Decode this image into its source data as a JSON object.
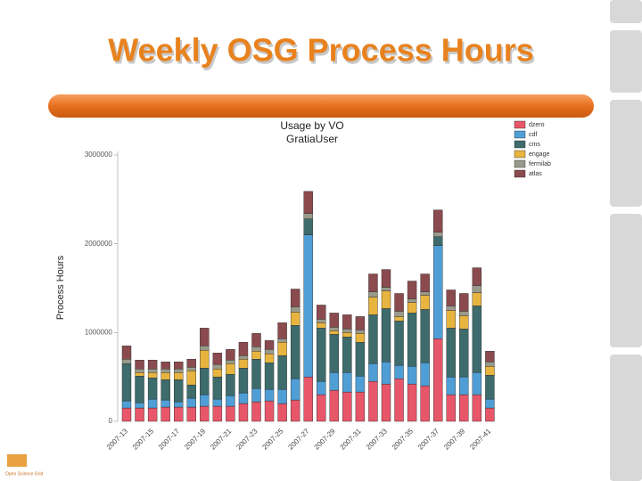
{
  "slide_title": "Weekly OSG Process Hours",
  "logo_text": "Open Science Grid",
  "chart_data": {
    "type": "stacked-bar",
    "title": "Usage by VO",
    "subtitle": "GratiaUser",
    "y_label": "Process Hours",
    "ylim": [
      0,
      3000000
    ],
    "yticks": [
      0,
      1000000,
      2000000,
      3000000
    ],
    "legend": "right",
    "categories": [
      "2007-13",
      null,
      "2007-15",
      null,
      "2007-17",
      null,
      "2007-19",
      null,
      "2007-21",
      null,
      "2007-23",
      null,
      "2007-25",
      null,
      "2007-27",
      null,
      "2007-29",
      null,
      "2007-31",
      null,
      "2007-33",
      null,
      "2007-35",
      null,
      "2007-37",
      null,
      "2007-39",
      null,
      "2007-41"
    ],
    "series": [
      {
        "name": "dzero",
        "color": "#e8566a",
        "values": [
          150000,
          150000,
          150000,
          160000,
          160000,
          160000,
          170000,
          170000,
          170000,
          200000,
          220000,
          230000,
          200000,
          240000,
          500000,
          300000,
          350000,
          330000,
          330000,
          450000,
          420000,
          480000,
          420000,
          400000,
          930000,
          300000,
          300000,
          300000,
          150000
        ]
      },
      {
        "name": "cdf",
        "color": "#4f9fd6",
        "values": [
          80000,
          60000,
          100000,
          80000,
          60000,
          100000,
          130000,
          80000,
          120000,
          120000,
          150000,
          130000,
          160000,
          240000,
          1600000,
          150000,
          200000,
          220000,
          180000,
          200000,
          250000,
          150000,
          200000,
          260000,
          1050000,
          200000,
          200000,
          250000,
          100000
        ]
      },
      {
        "name": "cms",
        "color": "#3e6b6b",
        "values": [
          420000,
          300000,
          240000,
          230000,
          250000,
          150000,
          300000,
          250000,
          240000,
          280000,
          330000,
          300000,
          380000,
          600000,
          180000,
          600000,
          430000,
          400000,
          380000,
          550000,
          600000,
          500000,
          600000,
          600000,
          100000,
          550000,
          540000,
          750000,
          270000
        ]
      },
      {
        "name": "engage",
        "color": "#e8b440",
        "values": [
          0,
          40000,
          60000,
          80000,
          80000,
          160000,
          200000,
          90000,
          120000,
          100000,
          90000,
          100000,
          150000,
          150000,
          0,
          60000,
          40000,
          50000,
          100000,
          200000,
          200000,
          50000,
          120000,
          160000,
          0,
          200000,
          150000,
          150000,
          100000
        ]
      },
      {
        "name": "fermilab",
        "color": "#9a9a8c",
        "values": [
          50000,
          40000,
          40000,
          40000,
          40000,
          40000,
          50000,
          50000,
          40000,
          40000,
          50000,
          50000,
          40000,
          60000,
          60000,
          40000,
          40000,
          40000,
          40000,
          60000,
          40000,
          60000,
          40000,
          40000,
          50000,
          50000,
          50000,
          80000,
          50000
        ]
      },
      {
        "name": "atlas",
        "color": "#8a4a4e",
        "values": [
          150000,
          100000,
          100000,
          80000,
          80000,
          90000,
          200000,
          130000,
          120000,
          150000,
          150000,
          100000,
          180000,
          200000,
          250000,
          160000,
          160000,
          160000,
          150000,
          200000,
          200000,
          200000,
          200000,
          200000,
          250000,
          180000,
          200000,
          200000,
          120000
        ]
      }
    ]
  }
}
